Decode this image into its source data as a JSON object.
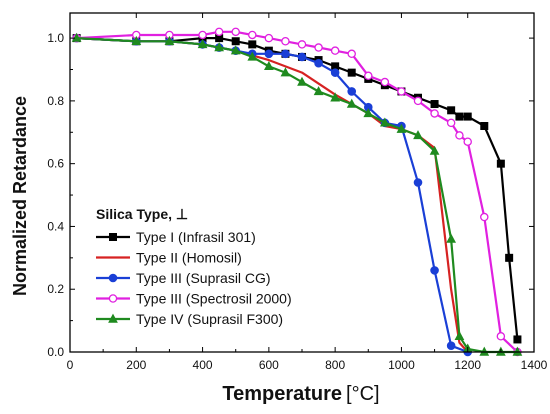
{
  "chart_data": {
    "type": "line",
    "title": "",
    "xlabel": "Temperature",
    "xlabel_unit": "[°C]",
    "ylabel": "Normalized Retardance",
    "xlim": [
      0,
      1400
    ],
    "ylim": [
      0.0,
      1.08
    ],
    "x_ticks": [
      0,
      200,
      400,
      600,
      800,
      1000,
      1200,
      1400
    ],
    "y_ticks": [
      "0.0",
      "0.2",
      "0.4",
      "0.6",
      "0.8",
      "1.0"
    ],
    "grid": false,
    "legend": {
      "title": "Silica Type, ⊥",
      "placement": "bottom-left"
    },
    "series": [
      {
        "name": "Type I (Infrasil 301)",
        "color": "#000000",
        "marker": "square-filled",
        "x": [
          20,
          200,
          300,
          400,
          450,
          500,
          550,
          600,
          650,
          700,
          750,
          800,
          850,
          900,
          950,
          1000,
          1050,
          1100,
          1150,
          1175,
          1200,
          1250,
          1300,
          1325,
          1350
        ],
        "y": [
          1.0,
          0.99,
          0.99,
          1.0,
          1.0,
          0.99,
          0.98,
          0.96,
          0.95,
          0.94,
          0.93,
          0.91,
          0.89,
          0.87,
          0.85,
          0.83,
          0.81,
          0.79,
          0.77,
          0.75,
          0.75,
          0.72,
          0.6,
          0.3,
          0.04
        ]
      },
      {
        "name": "Type II (Homosil)",
        "color": "#d62222",
        "marker": "none",
        "x": [
          20,
          200,
          300,
          400,
          500,
          600,
          700,
          800,
          900,
          950,
          1000,
          1050,
          1100,
          1150,
          1175,
          1200
        ],
        "y": [
          1.0,
          0.99,
          0.99,
          0.98,
          0.96,
          0.93,
          0.89,
          0.82,
          0.76,
          0.72,
          0.71,
          0.69,
          0.65,
          0.2,
          0.03,
          0.0
        ]
      },
      {
        "name": "Type III (Suprasil CG)",
        "color": "#1a3fd6",
        "marker": "circle-filled",
        "x": [
          20,
          200,
          300,
          400,
          450,
          500,
          550,
          600,
          650,
          700,
          750,
          800,
          850,
          900,
          950,
          1000,
          1050,
          1100,
          1150,
          1200
        ],
        "y": [
          1.0,
          0.99,
          0.99,
          0.98,
          0.97,
          0.96,
          0.95,
          0.95,
          0.95,
          0.94,
          0.92,
          0.89,
          0.83,
          0.78,
          0.73,
          0.72,
          0.54,
          0.26,
          0.02,
          0.0
        ]
      },
      {
        "name": "Type III (Spectrosil 2000)",
        "color": "#e020e0",
        "marker": "circle-open",
        "x": [
          20,
          200,
          300,
          400,
          450,
          500,
          550,
          600,
          650,
          700,
          750,
          800,
          850,
          900,
          950,
          1000,
          1050,
          1100,
          1150,
          1175,
          1200,
          1250,
          1300,
          1350
        ],
        "y": [
          1.0,
          1.01,
          1.01,
          1.01,
          1.02,
          1.02,
          1.01,
          1.0,
          0.99,
          0.98,
          0.97,
          0.96,
          0.95,
          0.88,
          0.86,
          0.83,
          0.8,
          0.76,
          0.73,
          0.69,
          0.67,
          0.43,
          0.05,
          0.0
        ]
      },
      {
        "name": "Type IV (Suprasil F300)",
        "color": "#1f8a1f",
        "marker": "triangle-filled",
        "x": [
          20,
          200,
          300,
          400,
          450,
          500,
          550,
          600,
          650,
          700,
          750,
          800,
          850,
          900,
          950,
          1000,
          1050,
          1100,
          1150,
          1175,
          1200,
          1250,
          1300,
          1350
        ],
        "y": [
          1.0,
          0.99,
          0.99,
          0.98,
          0.97,
          0.96,
          0.94,
          0.91,
          0.89,
          0.86,
          0.83,
          0.81,
          0.79,
          0.76,
          0.73,
          0.71,
          0.69,
          0.64,
          0.36,
          0.05,
          0.01,
          0.0,
          0.0,
          0.0
        ]
      }
    ]
  }
}
